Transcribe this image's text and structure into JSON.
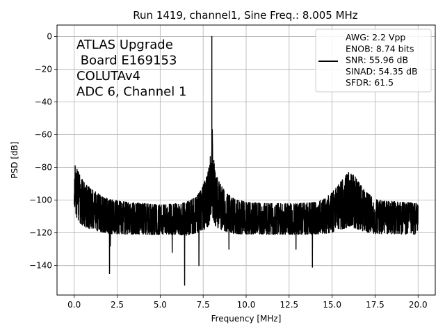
{
  "chart_data": {
    "type": "line",
    "title": "Run 1419, channel1, Sine Freq.: 8.005 MHz",
    "xlabel": "Frequency [MHz]",
    "ylabel": "PSD [dB]",
    "xlim": [
      -1.0,
      21.0
    ],
    "ylim": [
      -158,
      7
    ],
    "x_ticks": [
      0.0,
      2.5,
      5.0,
      7.5,
      10.0,
      12.5,
      15.0,
      17.5,
      20.0
    ],
    "x_tick_labels": [
      "0.0",
      "2.5",
      "5.0",
      "7.5",
      "10.0",
      "12.5",
      "15.0",
      "17.5",
      "20.0"
    ],
    "y_ticks": [
      0,
      -20,
      -40,
      -60,
      -80,
      -100,
      -120,
      -140
    ],
    "y_tick_labels": [
      "0",
      "−20",
      "−40",
      "−60",
      "−80",
      "−100",
      "−120",
      "−140"
    ],
    "grid": true,
    "legend_position": "top-right",
    "series": [
      {
        "name": "AWG: 2.2 Vpp\nENOB: 8.74 bits\nSNR: 55.96 dB\nSINAD: 54.35 dB\nSFDR: 61.5",
        "legend_lines": [
          "AWG: 2.2 Vpp",
          "ENOB: 8.74 bits",
          "SNR: 55.96 dB",
          "SINAD: 54.35 dB",
          "SFDR: 61.5"
        ],
        "color": "#000000",
        "envelope": {
          "x": [
            0.0,
            0.05,
            0.3,
            0.6,
            1.0,
            1.5,
            2.0,
            3.0,
            4.0,
            5.0,
            6.0,
            6.5,
            7.0,
            7.3,
            7.6,
            7.8,
            7.95,
            8.005,
            8.06,
            8.2,
            8.5,
            8.8,
            9.2,
            10.0,
            11.0,
            12.0,
            13.0,
            14.0,
            14.5,
            15.0,
            15.4,
            15.8,
            16.0,
            16.3,
            16.6,
            17.0,
            17.5,
            18.0,
            19.0,
            20.0
          ],
          "upper": [
            -68,
            -72,
            -78,
            -84,
            -88,
            -92,
            -95,
            -97,
            -98,
            -99,
            -98,
            -97,
            -94,
            -90,
            -82,
            -75,
            -60,
            0,
            -60,
            -76,
            -84,
            -90,
            -94,
            -97,
            -98,
            -98,
            -98,
            -97,
            -95,
            -90,
            -84,
            -78,
            -75,
            -78,
            -84,
            -90,
            -95,
            -96,
            -97,
            -98
          ],
          "lower": [
            -112,
            -115,
            -120,
            -122,
            -123,
            -124,
            -125,
            -125,
            -125,
            -125,
            -125,
            -126,
            -125,
            -125,
            -124,
            -123,
            -122,
            -120,
            -122,
            -123,
            -124,
            -124,
            -125,
            -125,
            -125,
            -125,
            -125,
            -125,
            -125,
            -125,
            -124,
            -124,
            -123,
            -124,
            -124,
            -125,
            -125,
            -125,
            -125,
            -125
          ]
        },
        "dips": [
          {
            "x": 2.05,
            "y": -145
          },
          {
            "x": 6.42,
            "y": -152
          },
          {
            "x": 7.25,
            "y": -140
          },
          {
            "x": 13.85,
            "y": -141
          },
          {
            "x": 2.1,
            "y": -128
          },
          {
            "x": 5.7,
            "y": -132
          },
          {
            "x": 9.0,
            "y": -130
          },
          {
            "x": 12.9,
            "y": -130
          }
        ],
        "main_tone": {
          "x": 8.005,
          "y": 0
        }
      }
    ],
    "annotations": [
      {
        "lines": [
          "ATLAS Upgrade",
          " Board E169153",
          "COLUTAv4",
          "ADC 6, Channel 1"
        ],
        "position": "top-left"
      }
    ]
  }
}
